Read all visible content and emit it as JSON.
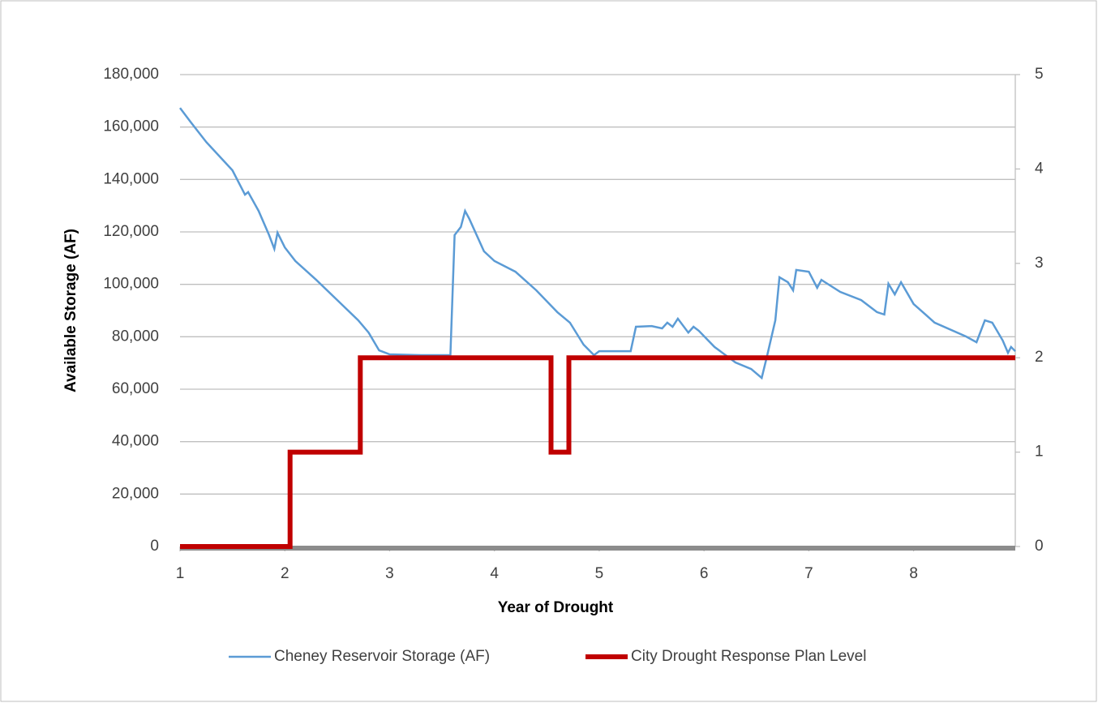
{
  "chart_data": {
    "type": "line",
    "xlabel": "Year of Drought",
    "ylabel": "Available Storage (AF)",
    "xlim": [
      1,
      8.97
    ],
    "xticks": [
      1,
      2,
      3,
      4,
      5,
      6,
      7,
      8
    ],
    "ylim": [
      0,
      180000
    ],
    "yticks": [
      0,
      {
        "value": 20000,
        "label": "20,000"
      },
      {
        "value": 40000,
        "label": "40,000"
      },
      {
        "value": 60000,
        "label": "60,000"
      },
      {
        "value": 80000,
        "label": "80,000"
      },
      {
        "value": 100000,
        "label": "100,000"
      },
      {
        "value": 120000,
        "label": "120,000"
      },
      {
        "value": 140000,
        "label": "140,000"
      },
      {
        "value": 160000,
        "label": "160,000"
      },
      {
        "value": 180000,
        "label": "180,000"
      }
    ],
    "y2lim": [
      0,
      5
    ],
    "y2ticks": [
      0,
      1,
      2,
      3,
      4,
      5
    ],
    "grid": true,
    "legend": "bottom",
    "series": [
      {
        "name": "Cheney Reservoir Storage (AF)",
        "color": "#5b9bd5",
        "width": 2.5,
        "x": [
          1.0,
          1.1,
          1.25,
          1.5,
          1.62,
          1.65,
          1.75,
          1.85,
          1.9,
          1.93,
          2.0,
          2.1,
          2.3,
          2.5,
          2.7,
          2.8,
          2.9,
          3.0,
          3.3,
          3.58,
          3.62,
          3.68,
          3.72,
          3.76,
          3.9,
          4.0,
          4.2,
          4.4,
          4.6,
          4.72,
          4.85,
          4.95,
          5.0,
          5.1,
          5.3,
          5.35,
          5.5,
          5.6,
          5.65,
          5.7,
          5.75,
          5.85,
          5.9,
          5.95,
          6.1,
          6.3,
          6.45,
          6.55,
          6.6,
          6.68,
          6.72,
          6.8,
          6.85,
          6.88,
          7.0,
          7.08,
          7.12,
          7.3,
          7.5,
          7.65,
          7.72,
          7.76,
          7.82,
          7.88,
          8.0,
          8.2,
          8.5,
          8.6,
          8.68,
          8.75,
          8.85,
          8.9,
          8.93,
          8.97
        ],
        "values": [
          167300,
          162000,
          154300,
          143500,
          134200,
          135200,
          128000,
          118800,
          113500,
          119700,
          114100,
          108900,
          101700,
          94000,
          86300,
          81600,
          74800,
          73300,
          73000,
          73000,
          118800,
          121900,
          128000,
          125000,
          112600,
          108900,
          104800,
          97700,
          89400,
          85400,
          77000,
          73000,
          74500,
          74500,
          74500,
          83800,
          84100,
          83200,
          85400,
          83800,
          86900,
          81600,
          83800,
          82300,
          76100,
          70200,
          67700,
          64300,
          72400,
          86300,
          102700,
          100800,
          97700,
          105500,
          104800,
          98700,
          101700,
          97100,
          94000,
          89400,
          88500,
          100200,
          96200,
          100800,
          92500,
          85400,
          80100,
          77900,
          86300,
          85400,
          78600,
          73900,
          76100,
          74500
        ]
      },
      {
        "name": "City Drought Response Plan Level",
        "color": "#c00000",
        "width": 6,
        "axis": "y2",
        "x": [
          1,
          2.05,
          2.05,
          2.72,
          2.72,
          4.54,
          4.54,
          4.71,
          4.71,
          8.97
        ],
        "values": [
          0,
          0,
          1,
          1,
          2,
          2,
          1,
          1,
          2,
          2
        ]
      }
    ]
  }
}
